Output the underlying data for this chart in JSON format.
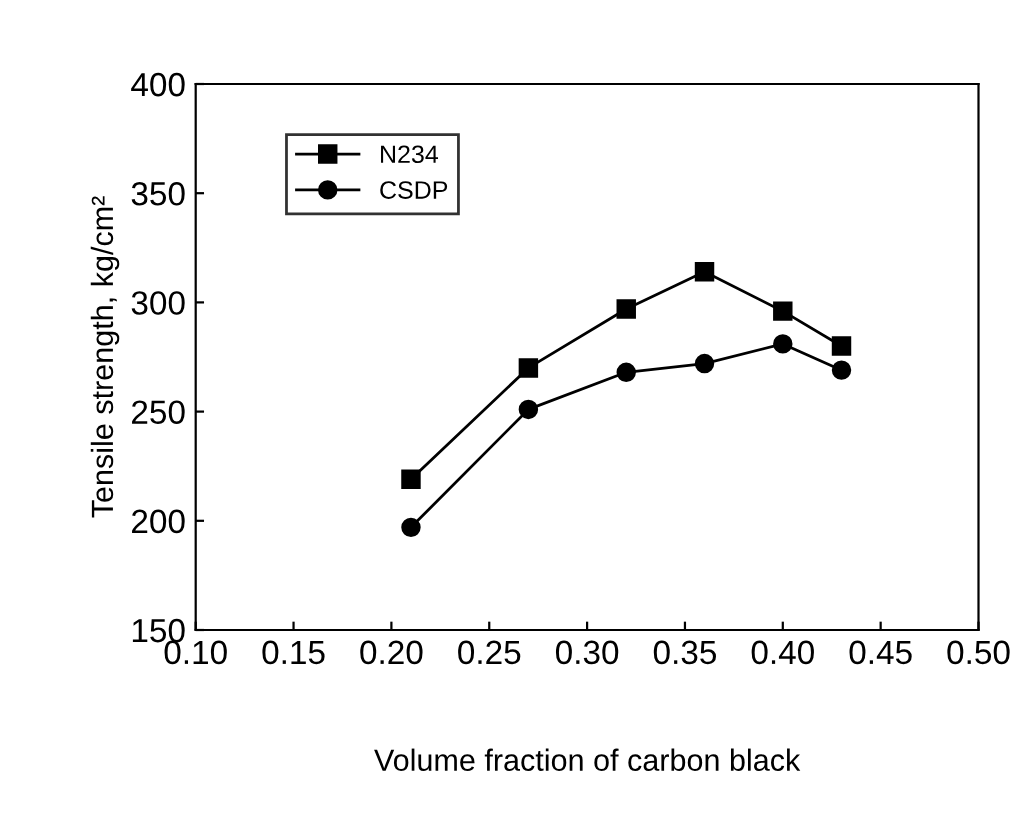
{
  "chart_data": {
    "type": "line",
    "xlabel": "Volume fraction of carbon black",
    "ylabel": "Tensile strength, kg/cm²",
    "x": [
      0.21,
      0.27,
      0.32,
      0.36,
      0.4,
      0.43
    ],
    "series": [
      {
        "name": "N234",
        "color": "#000000",
        "marker": "square",
        "values": [
          219,
          270,
          297,
          314,
          296,
          280
        ]
      },
      {
        "name": "CSDP",
        "color": "#000000",
        "marker": "circle",
        "values": [
          197,
          251,
          268,
          272,
          281,
          269
        ]
      }
    ],
    "xlim": [
      0.1,
      0.5
    ],
    "xticks": [
      {
        "value": 0.1,
        "label": "0.10"
      },
      {
        "value": 0.15,
        "label": "0.15"
      },
      {
        "value": 0.2,
        "label": "0.20"
      },
      {
        "value": 0.25,
        "label": "0.25"
      },
      {
        "value": 0.3,
        "label": "0.30"
      },
      {
        "value": 0.35,
        "label": "0.35"
      },
      {
        "value": 0.4,
        "label": "0.40"
      },
      {
        "value": 0.45,
        "label": "0.45"
      },
      {
        "value": 0.5,
        "label": "0.50"
      }
    ],
    "ylim": [
      150,
      400
    ],
    "yticks": [
      150,
      200,
      250,
      300,
      350,
      400
    ],
    "legend": "upper left",
    "grid": false,
    "line_style": "solid"
  }
}
